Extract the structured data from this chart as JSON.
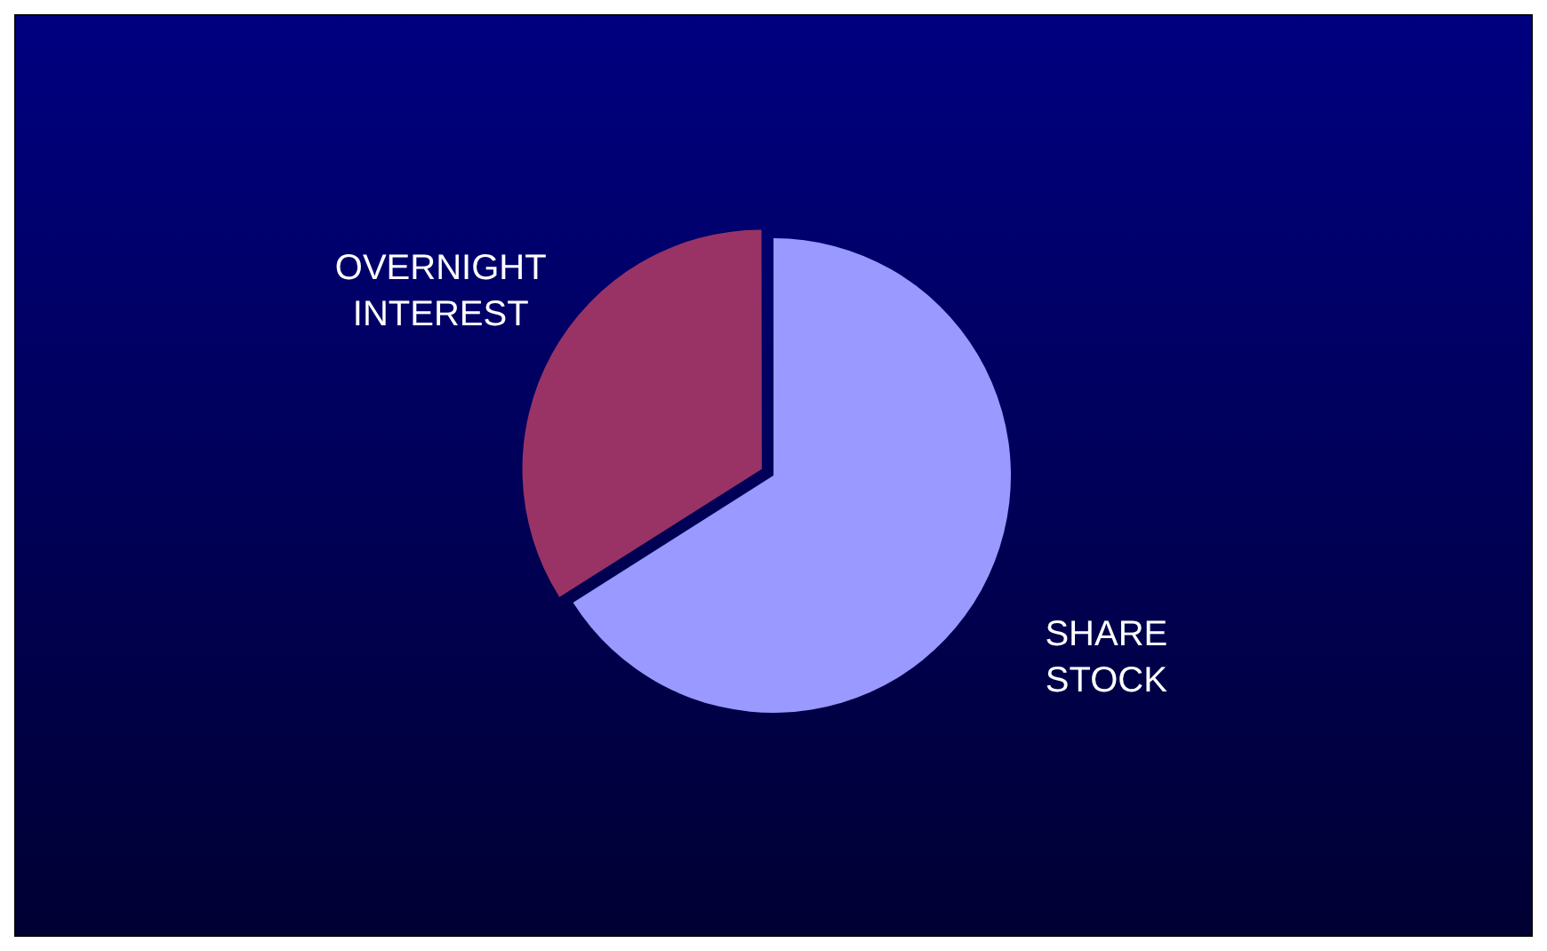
{
  "chart_data": {
    "type": "pie",
    "categories": [
      "SHARE STOCK",
      "OVERNIGHT INTEREST"
    ],
    "values": [
      66,
      34
    ],
    "colors": [
      "#9999ff",
      "#993366"
    ],
    "legend": false
  }
}
